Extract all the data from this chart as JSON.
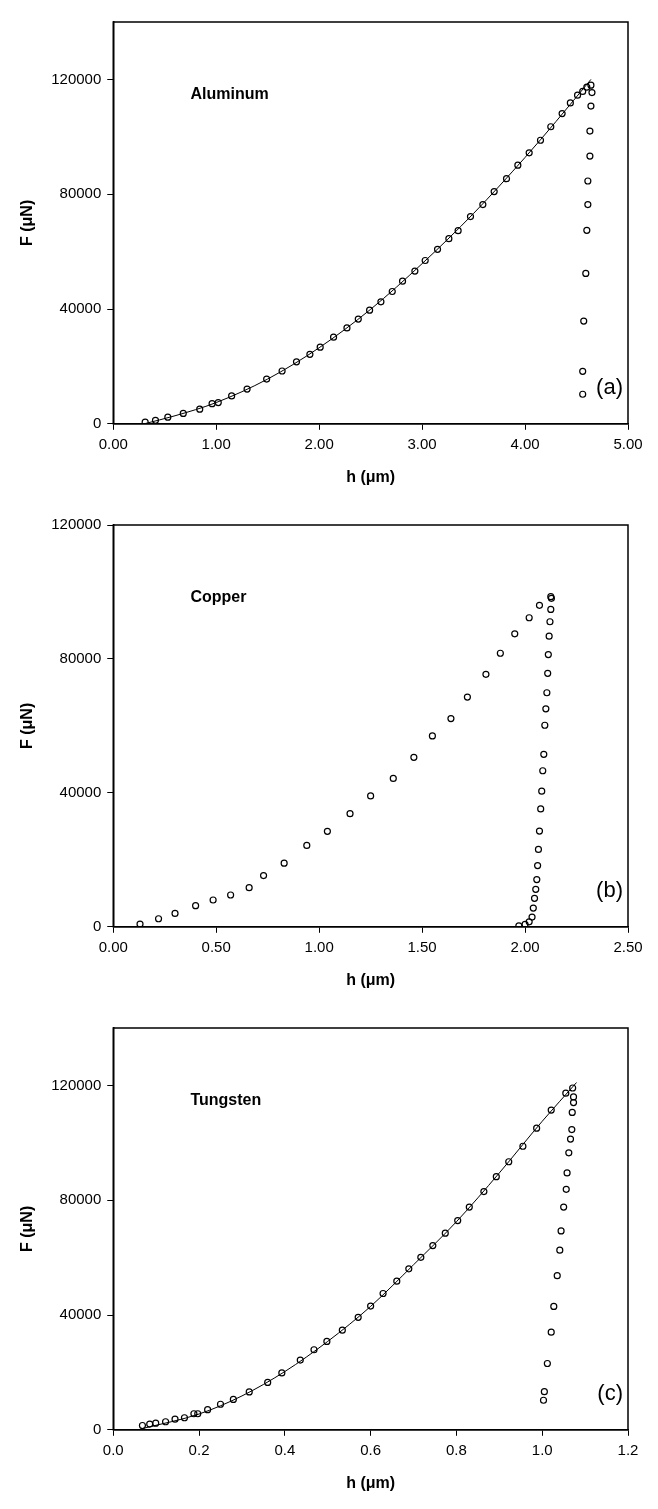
{
  "chart_data": [
    {
      "type": "scatter",
      "xlabel": "h (μm)",
      "ylabel": "F (μN)",
      "annotations": [
        "Aluminum",
        "(a)"
      ],
      "xlim": [
        0,
        5
      ],
      "ylim": [
        0,
        140000
      ],
      "xticks": [
        {
          "value": 0,
          "label": "0.00"
        },
        {
          "value": 1,
          "label": "1.00"
        },
        {
          "value": 2,
          "label": "2.00"
        },
        {
          "value": 3,
          "label": "3.00"
        },
        {
          "value": 4,
          "label": "4.00"
        },
        {
          "value": 5,
          "label": "5.00"
        }
      ],
      "yticks": [
        0,
        40000,
        80000,
        120000
      ],
      "series": [
        {
          "marker": "circle",
          "color": "#000000",
          "x": [
            0.31,
            0.41,
            0.53,
            0.68,
            0.84,
            0.96,
            1.02,
            1.15,
            1.3,
            1.49,
            1.64,
            1.78,
            1.91,
            2.01,
            2.14,
            2.27,
            2.38,
            2.49,
            2.6,
            2.71,
            2.81,
            2.93,
            3.03,
            3.15,
            3.26,
            3.35,
            3.47,
            3.59,
            3.7,
            3.82,
            3.93,
            4.04,
            4.15,
            4.25,
            4.36,
            4.44,
            4.51,
            4.56,
            4.6,
            4.64,
            4.65,
            4.64,
            4.63,
            4.63,
            4.61,
            4.61,
            4.6,
            4.59,
            4.57,
            4.56,
            4.56
          ],
          "values": [
            600,
            1200,
            2300,
            3600,
            5100,
            7000,
            7400,
            9700,
            12100,
            15600,
            18400,
            21600,
            24200,
            26700,
            30200,
            33400,
            36500,
            39600,
            42500,
            46100,
            49700,
            53200,
            56900,
            60800,
            64500,
            67300,
            72200,
            76400,
            80900,
            85400,
            90100,
            94400,
            98800,
            103500,
            108100,
            111800,
            114500,
            115800,
            117300,
            118000,
            115400,
            110700,
            102000,
            93300,
            84600,
            76400,
            67400,
            52400,
            35800,
            18300,
            10300
          ]
        },
        {
          "type": "line",
          "marker": "none",
          "line_style": "solid",
          "color": "#000000",
          "x": [
            0.3,
            0.6,
            1.0,
            1.5,
            2.0,
            2.5,
            3.0,
            3.5,
            4.0,
            4.3,
            4.64
          ],
          "values": [
            0,
            2800,
            7400,
            15600,
            26500,
            39900,
            55800,
            73300,
            92800,
            105300,
            120000
          ]
        }
      ]
    },
    {
      "type": "scatter",
      "xlabel": "h (μm)",
      "ylabel": "F (μN)",
      "annotations": [
        "Copper",
        "(b)"
      ],
      "xlim": [
        0,
        2.5
      ],
      "ylim": [
        0,
        120000
      ],
      "xticks": [
        {
          "value": 0,
          "label": "0.00"
        },
        {
          "value": 0.5,
          "label": "0.50"
        },
        {
          "value": 1,
          "label": "1.00"
        },
        {
          "value": 1.5,
          "label": "1.50"
        },
        {
          "value": 2,
          "label": "2.00"
        },
        {
          "value": 2.5,
          "label": "2.50"
        }
      ],
      "yticks": [
        0,
        40000,
        80000,
        120000
      ],
      "series": [
        {
          "marker": "circle",
          "color": "#000000",
          "x": [
            0.13,
            0.22,
            0.3,
            0.4,
            0.485,
            0.57,
            0.66,
            0.73,
            0.83,
            0.94,
            1.04,
            1.15,
            1.25,
            1.36,
            1.46,
            1.55,
            1.64,
            1.72,
            1.81,
            1.88,
            1.95,
            2.02,
            2.07,
            2.125,
            2.128,
            2.125,
            2.121,
            2.117,
            2.113,
            2.11,
            2.106,
            2.101,
            2.096,
            2.091,
            2.086,
            2.081,
            2.076,
            2.07,
            2.065,
            2.061,
            2.057,
            2.052,
            2.046,
            2.04,
            2.034,
            2.02,
            2.0,
            1.97
          ],
          "values": [
            800,
            2400,
            4000,
            6300,
            8000,
            9500,
            11700,
            15300,
            19000,
            24300,
            28500,
            33800,
            39100,
            44300,
            50600,
            57000,
            62200,
            68600,
            75400,
            81700,
            87500,
            92300,
            96000,
            98600,
            98100,
            94800,
            91100,
            86800,
            81300,
            75700,
            69900,
            65100,
            60200,
            51500,
            46600,
            40500,
            35200,
            28600,
            23100,
            18300,
            14100,
            11200,
            8500,
            5600,
            2900,
            1500,
            700,
            300
          ]
        }
      ]
    },
    {
      "type": "scatter",
      "xlabel": "h (μm)",
      "ylabel": "F (μN)",
      "annotations": [
        "Tungsten",
        "(c)"
      ],
      "xlim": [
        0,
        1.2
      ],
      "ylim": [
        0,
        140000
      ],
      "xticks": [
        {
          "value": 0,
          "label": "0.0"
        },
        {
          "value": 0.2,
          "label": "0.2"
        },
        {
          "value": 0.4,
          "label": "0.4"
        },
        {
          "value": 0.6,
          "label": "0.6"
        },
        {
          "value": 0.8,
          "label": "0.8"
        },
        {
          "value": 1,
          "label": "1.0"
        },
        {
          "value": 1.2,
          "label": "1.2"
        }
      ],
      "yticks": [
        0,
        40000,
        80000,
        120000
      ],
      "series": [
        {
          "marker": "circle",
          "color": "#000000",
          "x": [
            0.068,
            0.085,
            0.099,
            0.122,
            0.144,
            0.166,
            0.188,
            0.197,
            0.22,
            0.25,
            0.28,
            0.317,
            0.36,
            0.393,
            0.436,
            0.468,
            0.498,
            0.534,
            0.571,
            0.6,
            0.629,
            0.661,
            0.689,
            0.717,
            0.745,
            0.774,
            0.803,
            0.83,
            0.864,
            0.893,
            0.922,
            0.955,
            0.987,
            1.021,
            1.055,
            1.071,
            1.073,
            1.073,
            1.07,
            1.069,
            1.066,
            1.062,
            1.058,
            1.056,
            1.05,
            1.044,
            1.041,
            1.035,
            1.027,
            1.021,
            1.012,
            1.005,
            1.003
          ],
          "values": [
            1500,
            2000,
            2300,
            2800,
            3700,
            4200,
            5600,
            5600,
            7000,
            8900,
            10600,
            13200,
            16500,
            19800,
            24300,
            27900,
            30800,
            34700,
            39200,
            43100,
            47500,
            51800,
            56100,
            60100,
            64200,
            68500,
            72900,
            77600,
            83000,
            88200,
            93400,
            98800,
            105100,
            111400,
            117300,
            119100,
            116000,
            114000,
            110600,
            104600,
            101300,
            96500,
            89500,
            83800,
            77600,
            69300,
            62600,
            53700,
            43000,
            34000,
            23100,
            13300,
            10300
          ]
        },
        {
          "type": "line",
          "marker": "none",
          "line_style": "solid",
          "color": "#000000",
          "x": [
            0.07,
            0.2,
            0.3,
            0.4,
            0.5,
            0.6,
            0.7,
            0.8,
            0.9,
            1.0,
            1.08
          ],
          "values": [
            500,
            5500,
            11800,
            20300,
            30800,
            43000,
            57500,
            72500,
            89500,
            107500,
            121000
          ]
        }
      ]
    }
  ]
}
